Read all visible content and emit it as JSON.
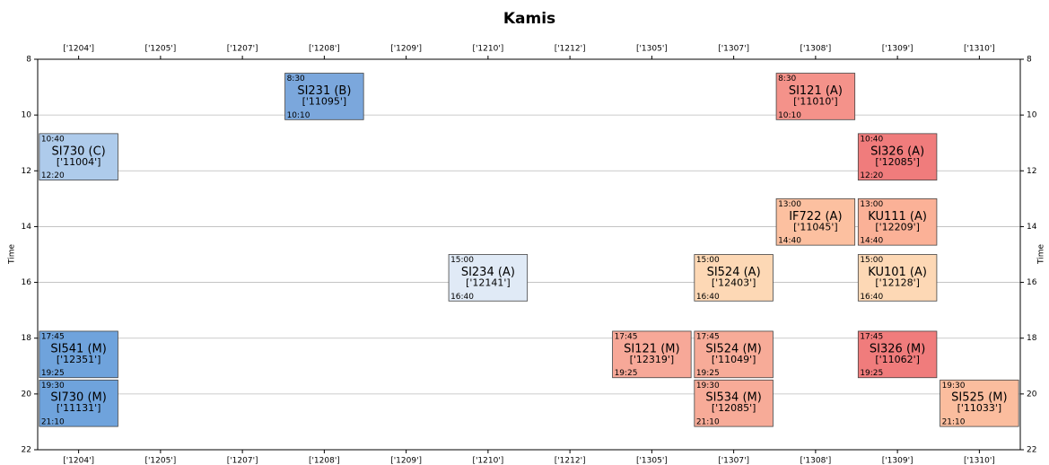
{
  "chart_data": {
    "type": "timetable",
    "title": "Kamis",
    "y_label": "Time",
    "categories": [
      "['1204']",
      "['1205']",
      "['1207']",
      "['1208']",
      "['1209']",
      "['1210']",
      "['1212']",
      "['1305']",
      "['1307']",
      "['1308']",
      "['1309']",
      "['1310']"
    ],
    "ylim": [
      8,
      22
    ],
    "y_inverted": true,
    "yticks": [
      8,
      10,
      12,
      14,
      16,
      18,
      20,
      22
    ],
    "grid": true,
    "events": [
      {
        "name": "SI231 (B)",
        "code": "['11095']",
        "room": "['1208']",
        "start": 8.5,
        "end": 10.1667,
        "value_labels": [
          "8:30",
          "10:10"
        ],
        "color": "#7ba7dc"
      },
      {
        "name": "SI121 (A)",
        "code": "['11010']",
        "room": "['1308']",
        "start": 8.5,
        "end": 10.1667,
        "value_labels": [
          "8:30",
          "10:10"
        ],
        "color": "#f4928a"
      },
      {
        "name": "SI730 (C)",
        "code": "['11004']",
        "room": "['1204']",
        "start": 10.6667,
        "end": 12.3333,
        "value_labels": [
          "10:40",
          "12:20"
        ],
        "color": "#aecbeb"
      },
      {
        "name": "SI326 (A)",
        "code": "['12085']",
        "room": "['1309']",
        "start": 10.6667,
        "end": 12.3333,
        "value_labels": [
          "10:40",
          "12:20"
        ],
        "color": "#f07c7c"
      },
      {
        "name": "IF722 (A)",
        "code": "['11045']",
        "room": "['1308']",
        "start": 13,
        "end": 14.6667,
        "value_labels": [
          "13:00",
          "14:40"
        ],
        "color": "#fcc0a0"
      },
      {
        "name": "KU111 (A)",
        "code": "['12209']",
        "room": "['1309']",
        "start": 13,
        "end": 14.6667,
        "value_labels": [
          "13:00",
          "14:40"
        ],
        "color": "#fbb197"
      },
      {
        "name": "SI234 (A)",
        "code": "['12141']",
        "room": "['1210']",
        "start": 15,
        "end": 16.6667,
        "value_labels": [
          "15:00",
          "16:40"
        ],
        "color": "#e0eaf6"
      },
      {
        "name": "SI524 (A)",
        "code": "['12403']",
        "room": "['1307']",
        "start": 15,
        "end": 16.6667,
        "value_labels": [
          "15:00",
          "16:40"
        ],
        "color": "#fdd8b5"
      },
      {
        "name": "KU101 (A)",
        "code": "['12128']",
        "room": "['1309']",
        "start": 15,
        "end": 16.6667,
        "value_labels": [
          "15:00",
          "16:40"
        ],
        "color": "#fdd8b5"
      },
      {
        "name": "SI541 (M)",
        "code": "['12351']",
        "room": "['1204']",
        "start": 17.75,
        "end": 19.4167,
        "value_labels": [
          "17:45",
          "19:25"
        ],
        "color": "#6fa3dc"
      },
      {
        "name": "SI121 (M)",
        "code": "['12319']",
        "room": "['1305']",
        "start": 17.75,
        "end": 19.4167,
        "value_labels": [
          "17:45",
          "19:25"
        ],
        "color": "#f7a898"
      },
      {
        "name": "SI524 (M)",
        "code": "['11049']",
        "room": "['1307']",
        "start": 17.75,
        "end": 19.4167,
        "value_labels": [
          "17:45",
          "19:25"
        ],
        "color": "#f7ab98"
      },
      {
        "name": "SI326 (M)",
        "code": "['11062']",
        "room": "['1309']",
        "start": 17.75,
        "end": 19.4167,
        "value_labels": [
          "17:45",
          "19:25"
        ],
        "color": "#f07c7c"
      },
      {
        "name": "SI730 (M)",
        "code": "['11131']",
        "room": "['1204']",
        "start": 19.5,
        "end": 21.1667,
        "value_labels": [
          "19:30",
          "21:10"
        ],
        "color": "#6fa3dc"
      },
      {
        "name": "SI534 (M)",
        "code": "['12085']",
        "room": "['1307']",
        "start": 19.5,
        "end": 21.1667,
        "value_labels": [
          "19:30",
          "21:10"
        ],
        "color": "#f7ab98"
      },
      {
        "name": "SI525 (M)",
        "code": "['11033']",
        "room": "['1310']",
        "start": 19.5,
        "end": 21.1667,
        "value_labels": [
          "19:30",
          "21:10"
        ],
        "color": "#fbbd9e"
      }
    ]
  }
}
